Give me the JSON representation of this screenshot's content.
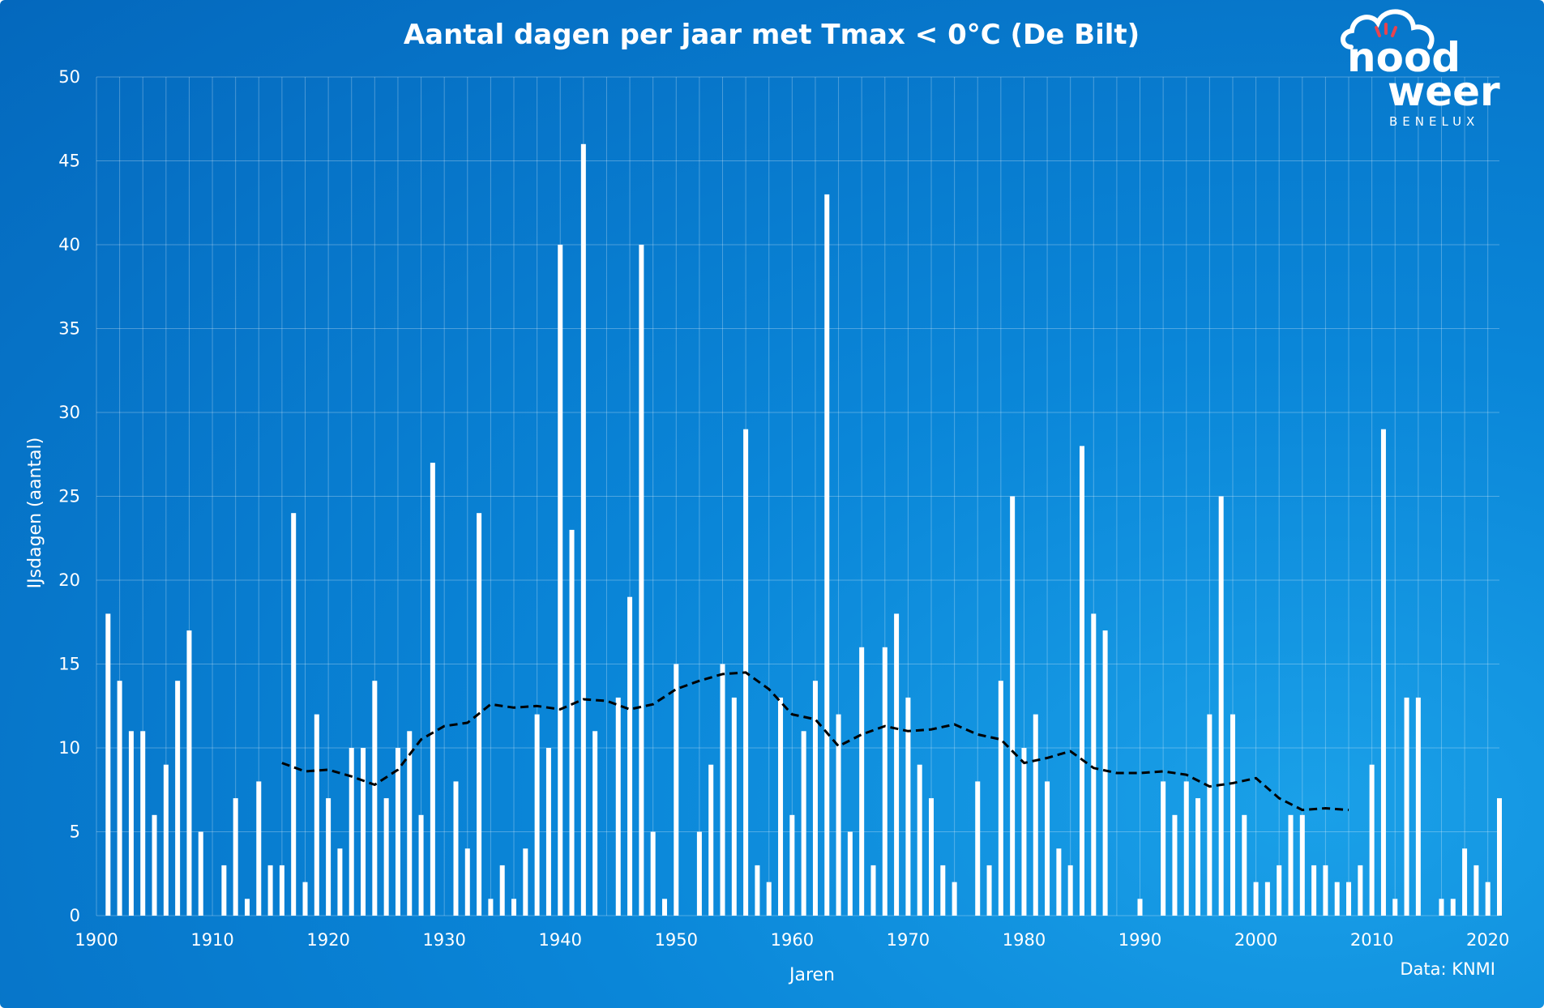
{
  "colors": {
    "bar": "#ffffff",
    "grid": "#ffffff",
    "trend": "#000000",
    "logo_accent": "#e8434e"
  },
  "logo": {
    "line1": "nood",
    "line2": "weer",
    "line3": "BENELUX"
  },
  "source": "Data: KNMI",
  "chart_data": {
    "type": "bar",
    "title": "Aantal dagen per jaar met Tmax < 0°C (De Bilt)",
    "xlabel": "Jaren",
    "ylabel": "IJsdagen (aantal)",
    "xlim": [
      1900,
      2021
    ],
    "ylim": [
      0,
      50
    ],
    "xticks": [
      1900,
      1910,
      1920,
      1930,
      1940,
      1950,
      1960,
      1970,
      1980,
      1990,
      2000,
      2010,
      2020
    ],
    "yticks": [
      0,
      5,
      10,
      15,
      20,
      25,
      30,
      35,
      40,
      45,
      50
    ],
    "grid": true,
    "x": [
      1901,
      1902,
      1903,
      1904,
      1905,
      1906,
      1907,
      1908,
      1909,
      1910,
      1911,
      1912,
      1913,
      1914,
      1915,
      1916,
      1917,
      1918,
      1919,
      1920,
      1921,
      1922,
      1923,
      1924,
      1925,
      1926,
      1927,
      1928,
      1929,
      1930,
      1931,
      1932,
      1933,
      1934,
      1935,
      1936,
      1937,
      1938,
      1939,
      1940,
      1941,
      1942,
      1943,
      1944,
      1945,
      1946,
      1947,
      1948,
      1949,
      1950,
      1951,
      1952,
      1953,
      1954,
      1955,
      1956,
      1957,
      1958,
      1959,
      1960,
      1961,
      1962,
      1963,
      1964,
      1965,
      1966,
      1967,
      1968,
      1969,
      1970,
      1971,
      1972,
      1973,
      1974,
      1975,
      1976,
      1977,
      1978,
      1979,
      1980,
      1981,
      1982,
      1983,
      1984,
      1985,
      1986,
      1987,
      1988,
      1989,
      1990,
      1991,
      1992,
      1993,
      1994,
      1995,
      1996,
      1997,
      1998,
      1999,
      2000,
      2001,
      2002,
      2003,
      2004,
      2005,
      2006,
      2007,
      2008,
      2009,
      2010,
      2011,
      2012,
      2013,
      2014,
      2015,
      2016,
      2017,
      2018,
      2019,
      2020,
      2021
    ],
    "values": [
      18,
      14,
      11,
      11,
      6,
      9,
      14,
      17,
      5,
      0,
      3,
      7,
      1,
      8,
      3,
      3,
      24,
      2,
      12,
      7,
      4,
      10,
      10,
      14,
      7,
      10,
      11,
      6,
      27,
      0,
      8,
      4,
      24,
      1,
      3,
      1,
      4,
      12,
      10,
      40,
      23,
      46,
      11,
      0,
      13,
      19,
      40,
      5,
      1,
      15,
      0,
      5,
      9,
      15,
      13,
      29,
      3,
      2,
      13,
      6,
      11,
      14,
      43,
      12,
      5,
      16,
      3,
      16,
      18,
      13,
      9,
      7,
      3,
      2,
      0,
      8,
      3,
      14,
      25,
      10,
      12,
      8,
      4,
      3,
      28,
      18,
      17,
      0,
      0,
      1,
      0,
      8,
      6,
      8,
      7,
      12,
      25,
      12,
      6,
      2,
      2,
      3,
      6,
      6,
      3,
      3,
      2,
      2,
      3,
      9,
      29,
      1,
      13,
      13,
      0,
      1,
      1,
      4,
      3,
      2,
      7
    ],
    "trend": {
      "style": "dashed",
      "x": [
        1916,
        1918,
        1920,
        1922,
        1924,
        1926,
        1928,
        1930,
        1932,
        1934,
        1936,
        1938,
        1940,
        1942,
        1944,
        1946,
        1948,
        1950,
        1952,
        1954,
        1956,
        1958,
        1960,
        1962,
        1964,
        1966,
        1968,
        1970,
        1972,
        1974,
        1976,
        1978,
        1980,
        1982,
        1984,
        1986,
        1988,
        1990,
        1992,
        1994,
        1996,
        1998,
        2000,
        2002,
        2004,
        2006,
        2008
      ],
      "values": [
        9.1,
        8.6,
        8.7,
        8.3,
        7.8,
        8.7,
        10.5,
        11.3,
        11.5,
        12.6,
        12.4,
        12.5,
        12.3,
        12.9,
        12.8,
        12.3,
        12.6,
        13.5,
        14.0,
        14.4,
        14.5,
        13.5,
        12.0,
        11.7,
        10.1,
        10.8,
        11.3,
        11.0,
        11.1,
        11.4,
        10.8,
        10.5,
        9.1,
        9.4,
        9.8,
        8.8,
        8.5,
        8.5,
        8.6,
        8.4,
        7.7,
        7.9,
        8.2,
        7.0,
        6.3,
        6.4,
        6.3
      ]
    }
  }
}
